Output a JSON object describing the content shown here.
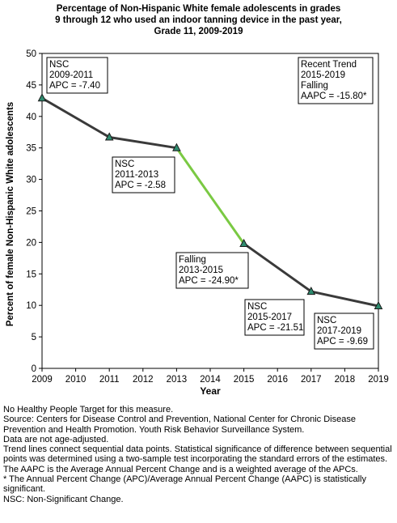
{
  "chart_data": {
    "type": "line",
    "title_lines": [
      "Percentage of Non-Hispanic White female adolescents in grades",
      "9 through 12 who used an indoor tanning device in the past year,",
      "Grade 11,  2009-2019"
    ],
    "xlabel": "Year",
    "ylabel": "Percent of female Non-Hispanic White adolescents",
    "xlim": [
      2009,
      2019
    ],
    "ylim": [
      0,
      50
    ],
    "x_ticks": [
      2009,
      2010,
      2011,
      2012,
      2013,
      2014,
      2015,
      2016,
      2017,
      2018,
      2019
    ],
    "y_ticks": [
      0,
      5,
      10,
      15,
      20,
      25,
      30,
      35,
      40,
      45,
      50
    ],
    "grid": false,
    "colors": {
      "line": "#3a3a3a",
      "highlight": "#7ac943",
      "marker_fill": "#2e8b6e",
      "marker_stroke": "#1a1a1a"
    },
    "points": [
      {
        "x": 2009,
        "y": 42.9
      },
      {
        "x": 2011,
        "y": 36.7
      },
      {
        "x": 2013,
        "y": 35.0
      },
      {
        "x": 2015,
        "y": 19.8
      },
      {
        "x": 2017,
        "y": 12.2
      },
      {
        "x": 2019,
        "y": 9.9
      }
    ],
    "segments": [
      {
        "from": 2009,
        "to": 2011,
        "trend": "nsc"
      },
      {
        "from": 2011,
        "to": 2013,
        "trend": "nsc"
      },
      {
        "from": 2013,
        "to": 2015,
        "trend": "falling"
      },
      {
        "from": 2015,
        "to": 2017,
        "trend": "nsc"
      },
      {
        "from": 2017,
        "to": 2019,
        "trend": "nsc"
      }
    ],
    "annotations": [
      {
        "id": "a1",
        "lines": [
          "NSC",
          "2009-2011",
          "APC = -7.40"
        ]
      },
      {
        "id": "a2",
        "lines": [
          "NSC",
          "2011-2013",
          "APC = -2.58"
        ]
      },
      {
        "id": "a3",
        "lines": [
          "Falling",
          "2013-2015",
          "APC = -24.90*"
        ]
      },
      {
        "id": "a4",
        "lines": [
          "NSC",
          "2015-2017",
          "APC = -21.51"
        ]
      },
      {
        "id": "a5",
        "lines": [
          "NSC",
          "2017-2019",
          "APC = -9.69"
        ]
      },
      {
        "id": "a6",
        "lines": [
          "Recent Trend",
          "2015-2019",
          "Falling",
          "AAPC = -15.80*"
        ]
      }
    ]
  },
  "notes": [
    "No Healthy People Target for this measure.",
    "Source: Centers for Disease Control and Prevention, National Center for Chronic Disease Prevention and Health Promotion. Youth Risk Behavior Surveillance System.",
    "Data are not age-adjusted.",
    "Trend lines connect sequential data points. Statistical significance of difference between sequential points was determined using a two-sample test incorporating the standard errors of the estimates.",
    "The AAPC is the Average Annual Percent Change and is a weighted average of the APCs.",
    "* The Annual Percent Change (APC)/Average Annual Percent Change (AAPC) is statistically significant.",
    "NSC: Non-Significant Change."
  ]
}
